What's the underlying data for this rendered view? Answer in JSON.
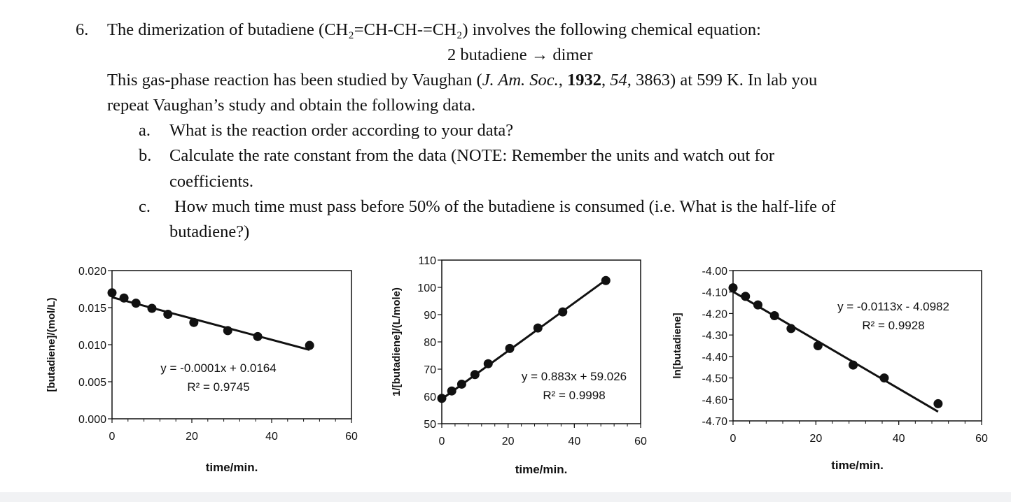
{
  "problem": {
    "number": "6.",
    "line1": "The dimerization of butadiene (CH₂=CH-CH-=CH₂) involves the following chemical equation:",
    "equation": "2 butadiene → dimer",
    "line3_pre": "This gas-phase reaction has been studied by Vaughan (",
    "line3_journal": "J. Am. Soc.",
    "line3_sep": ", ",
    "line3_year": "1932",
    "line3_vol": "54",
    "line3_post": ", 3863) at 599 K. In lab you",
    "line4": "repeat Vaughan’s study and obtain the following data.",
    "parts": [
      {
        "label": "a.",
        "lines": [
          "What is the reaction order according to your data?"
        ]
      },
      {
        "label": "b.",
        "lines": [
          "Calculate the rate constant from the data (NOTE: Remember the units and watch out for",
          "coefficients."
        ]
      },
      {
        "label": "c.",
        "lines": [
          "How much time must pass before 50% of the butadiene is consumed (i.e. What is the half-life of",
          "butadiene?)"
        ]
      }
    ]
  },
  "chart_data": [
    {
      "type": "scatter",
      "xlabel": "time/min.",
      "ylabel": "[butadiene]/(mol/L)",
      "xlim": [
        0,
        60
      ],
      "ylim": [
        0,
        0.02
      ],
      "xticks": [
        "0",
        "20",
        "40",
        "60"
      ],
      "yticks": [
        "0.000",
        "0.005",
        "0.010",
        "0.015",
        "0.020"
      ],
      "x": [
        0,
        3,
        6,
        10,
        14,
        20.5,
        29,
        36.5,
        49.5
      ],
      "y": [
        0.017,
        0.0163,
        0.0156,
        0.0149,
        0.0141,
        0.013,
        0.0119,
        0.0111,
        0.0099
      ],
      "trendline": {
        "x": [
          0,
          49.5
        ],
        "y": [
          0.0164,
          0.0093
        ]
      },
      "equation": "y = -0.0001x + 0.0164",
      "r2": "R² = 0.9745",
      "grid": false
    },
    {
      "type": "scatter",
      "xlabel": "time/min.",
      "ylabel": "1/[butadiene]/(L/mole)",
      "xlim": [
        0,
        60
      ],
      "ylim": [
        50,
        110
      ],
      "xticks": [
        "0",
        "20",
        "40",
        "60"
      ],
      "yticks": [
        "50",
        "60",
        "70",
        "80",
        "90",
        "100",
        "110"
      ],
      "x": [
        0,
        3,
        6,
        10,
        14,
        20.5,
        29,
        36.5,
        49.5
      ],
      "y": [
        59.3,
        62.0,
        64.5,
        68.0,
        72.0,
        77.6,
        85.1,
        91.0,
        102.5
      ],
      "trendline": {
        "x": [
          0,
          49.5
        ],
        "y": [
          59.026,
          102.7
        ]
      },
      "equation": "y = 0.883x + 59.026",
      "r2": "R² = 0.9998",
      "grid": false
    },
    {
      "type": "scatter",
      "xlabel": "time/min.",
      "ylabel": "ln[butadiene]",
      "xlim": [
        0,
        60
      ],
      "ylim": [
        -4.7,
        -4.0
      ],
      "xticks": [
        "0",
        "20",
        "40",
        "60"
      ],
      "yticks": [
        "-4.70",
        "-4.60",
        "-4.50",
        "-4.40",
        "-4.30",
        "-4.20",
        "-4.10",
        "-4.00"
      ],
      "x": [
        0,
        3,
        6,
        10,
        14,
        20.5,
        29,
        36.5,
        49.5
      ],
      "y": [
        -4.08,
        -4.12,
        -4.16,
        -4.21,
        -4.27,
        -4.35,
        -4.44,
        -4.5,
        -4.62
      ],
      "trendline": {
        "x": [
          0,
          49.5
        ],
        "y": [
          -4.0982,
          -4.657
        ]
      },
      "equation": "y = -0.0113x - 4.0982",
      "r2": "R² = 0.9928",
      "grid": false
    }
  ]
}
